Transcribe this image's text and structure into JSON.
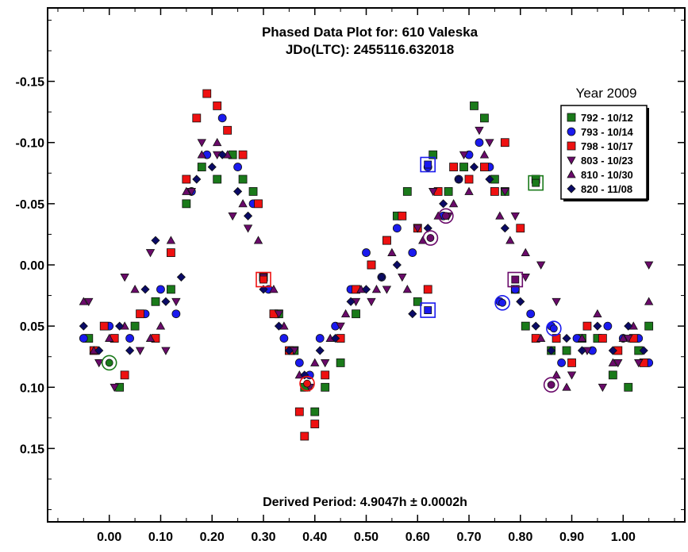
{
  "chart_data": {
    "type": "scatter",
    "title": "Phased Data Plot for: 610 Valeska",
    "subtitle": "JDo(LTC): 2455116.632018",
    "period_label": "Derived Period: 4.9047h ± 0.0002h",
    "xlabel": "",
    "ylabel": "",
    "xlim": [
      -0.12,
      1.12
    ],
    "ylim": [
      -0.21,
      0.21
    ],
    "y_inverted": true,
    "grid": false,
    "x_ticks": [
      0.0,
      0.1,
      0.2,
      0.3,
      0.4,
      0.5,
      0.6,
      0.7,
      0.8,
      0.9,
      1.0
    ],
    "x_tick_labels": [
      "0.00",
      "0.10",
      "0.20",
      "0.30",
      "0.40",
      "0.50",
      "0.60",
      "0.70",
      "0.80",
      "0.90",
      "1.00"
    ],
    "y_ticks": [
      -0.15,
      -0.1,
      -0.05,
      0.0,
      0.05,
      0.1,
      0.15
    ],
    "y_tick_labels": [
      "-0.15",
      "-0.10",
      "-0.05",
      "0.00",
      "0.05",
      "0.10",
      "0.15"
    ],
    "legend": {
      "title": "Year 2009",
      "position": "top-right"
    },
    "series": [
      {
        "name": "792 - 10/12",
        "marker": "square",
        "color": "#1a7a1a",
        "points": [
          [
            -0.04,
            0.06
          ],
          [
            0.02,
            0.1
          ],
          [
            0.05,
            0.05
          ],
          [
            0.09,
            0.03
          ],
          [
            0.12,
            0.02
          ],
          [
            0.15,
            -0.05
          ],
          [
            0.18,
            -0.08
          ],
          [
            0.21,
            -0.07
          ],
          [
            0.24,
            -0.09
          ],
          [
            0.26,
            -0.07
          ],
          [
            0.28,
            -0.06
          ],
          [
            0.3,
            0.01
          ],
          [
            0.33,
            0.04
          ],
          [
            0.36,
            0.07
          ],
          [
            0.38,
            0.1
          ],
          [
            0.4,
            0.12
          ],
          [
            0.42,
            0.1
          ],
          [
            0.45,
            0.08
          ],
          [
            0.48,
            0.04
          ],
          [
            0.51,
            0.0
          ],
          [
            0.54,
            -0.02
          ],
          [
            0.56,
            -0.04
          ],
          [
            0.58,
            -0.06
          ],
          [
            0.6,
            0.03
          ],
          [
            0.63,
            -0.09
          ],
          [
            0.66,
            -0.06
          ],
          [
            0.69,
            -0.08
          ],
          [
            0.71,
            -0.13
          ],
          [
            0.73,
            -0.12
          ],
          [
            0.75,
            -0.07
          ],
          [
            0.77,
            -0.06
          ],
          [
            0.79,
            0.02
          ],
          [
            0.81,
            0.05
          ],
          [
            0.83,
            -0.07
          ],
          [
            0.86,
            0.07
          ],
          [
            0.89,
            0.07
          ],
          [
            0.92,
            0.06
          ],
          [
            0.95,
            0.06
          ],
          [
            0.98,
            0.09
          ],
          [
            1.01,
            0.1
          ],
          [
            1.03,
            0.07
          ],
          [
            1.05,
            0.05
          ]
        ]
      },
      {
        "name": "793 - 10/14",
        "marker": "circle",
        "color": "#1a1aee",
        "points": [
          [
            -0.05,
            0.06
          ],
          [
            0.0,
            0.05
          ],
          [
            0.04,
            0.06
          ],
          [
            0.07,
            0.04
          ],
          [
            0.1,
            0.02
          ],
          [
            0.13,
            0.04
          ],
          [
            0.16,
            -0.06
          ],
          [
            0.19,
            -0.09
          ],
          [
            0.22,
            -0.12
          ],
          [
            0.25,
            -0.08
          ],
          [
            0.28,
            -0.05
          ],
          [
            0.31,
            0.02
          ],
          [
            0.34,
            0.06
          ],
          [
            0.37,
            0.08
          ],
          [
            0.39,
            0.09
          ],
          [
            0.41,
            0.06
          ],
          [
            0.44,
            0.05
          ],
          [
            0.47,
            0.02
          ],
          [
            0.5,
            -0.01
          ],
          [
            0.53,
            0.01
          ],
          [
            0.56,
            -0.03
          ],
          [
            0.59,
            -0.01
          ],
          [
            0.62,
            -0.08
          ],
          [
            0.65,
            -0.04
          ],
          [
            0.68,
            -0.07
          ],
          [
            0.7,
            -0.09
          ],
          [
            0.72,
            -0.1
          ],
          [
            0.74,
            -0.08
          ],
          [
            0.76,
            0.03
          ],
          [
            0.79,
            0.02
          ],
          [
            0.82,
            0.04
          ],
          [
            0.86,
            0.05
          ],
          [
            0.88,
            0.08
          ],
          [
            0.91,
            0.06
          ],
          [
            0.94,
            0.07
          ],
          [
            0.97,
            0.05
          ],
          [
            1.0,
            0.06
          ],
          [
            1.03,
            0.06
          ],
          [
            1.05,
            0.08
          ]
        ]
      },
      {
        "name": "798 - 10/17",
        "marker": "square",
        "color": "#ee1111",
        "points": [
          [
            -0.03,
            0.07
          ],
          [
            -0.01,
            0.05
          ],
          [
            0.01,
            0.06
          ],
          [
            0.03,
            0.09
          ],
          [
            0.06,
            0.04
          ],
          [
            0.09,
            0.06
          ],
          [
            0.12,
            -0.01
          ],
          [
            0.15,
            -0.07
          ],
          [
            0.17,
            -0.12
          ],
          [
            0.19,
            -0.14
          ],
          [
            0.21,
            -0.13
          ],
          [
            0.23,
            -0.11
          ],
          [
            0.26,
            -0.09
          ],
          [
            0.29,
            -0.05
          ],
          [
            0.3,
            0.01
          ],
          [
            0.32,
            0.04
          ],
          [
            0.35,
            0.07
          ],
          [
            0.37,
            0.12
          ],
          [
            0.38,
            0.14
          ],
          [
            0.4,
            0.13
          ],
          [
            0.42,
            0.09
          ],
          [
            0.45,
            0.06
          ],
          [
            0.48,
            0.02
          ],
          [
            0.51,
            0.0
          ],
          [
            0.54,
            -0.02
          ],
          [
            0.57,
            -0.04
          ],
          [
            0.6,
            -0.03
          ],
          [
            0.62,
            0.02
          ],
          [
            0.64,
            -0.06
          ],
          [
            0.67,
            -0.08
          ],
          [
            0.7,
            -0.07
          ],
          [
            0.73,
            -0.08
          ],
          [
            0.75,
            -0.06
          ],
          [
            0.77,
            -0.1
          ],
          [
            0.8,
            -0.03
          ],
          [
            0.83,
            0.06
          ],
          [
            0.87,
            0.06
          ],
          [
            0.9,
            0.08
          ],
          [
            0.93,
            0.05
          ],
          [
            0.96,
            0.06
          ],
          [
            0.99,
            0.07
          ],
          [
            1.02,
            0.06
          ],
          [
            1.04,
            0.08
          ]
        ]
      },
      {
        "name": "803 - 10/23",
        "marker": "triangle-down",
        "color": "#6a0a6a",
        "points": [
          [
            -0.04,
            0.03
          ],
          [
            -0.02,
            0.08
          ],
          [
            0.01,
            0.1
          ],
          [
            0.03,
            0.01
          ],
          [
            0.06,
            0.07
          ],
          [
            0.08,
            -0.01
          ],
          [
            0.11,
            0.07
          ],
          [
            0.13,
            0.03
          ],
          [
            0.16,
            -0.06
          ],
          [
            0.18,
            -0.1
          ],
          [
            0.21,
            -0.09
          ],
          [
            0.24,
            -0.04
          ],
          [
            0.27,
            -0.03
          ],
          [
            0.3,
            0.01
          ],
          [
            0.33,
            0.04
          ],
          [
            0.36,
            0.07
          ],
          [
            0.39,
            0.1
          ],
          [
            0.42,
            0.08
          ],
          [
            0.45,
            0.05
          ],
          [
            0.48,
            0.03
          ],
          [
            0.51,
            0.03
          ],
          [
            0.54,
            0.02
          ],
          [
            0.57,
            0.01
          ],
          [
            0.6,
            -0.03
          ],
          [
            0.63,
            -0.06
          ],
          [
            0.66,
            -0.04
          ],
          [
            0.69,
            -0.09
          ],
          [
            0.72,
            -0.11
          ],
          [
            0.74,
            -0.1
          ],
          [
            0.77,
            -0.06
          ],
          [
            0.79,
            -0.04
          ],
          [
            0.81,
            0.01
          ],
          [
            0.84,
            0.0
          ],
          [
            0.87,
            0.03
          ],
          [
            0.9,
            0.09
          ],
          [
            0.93,
            0.07
          ],
          [
            0.96,
            0.1
          ],
          [
            0.99,
            0.08
          ],
          [
            1.01,
            0.06
          ],
          [
            1.03,
            0.08
          ],
          [
            1.05,
            0.0
          ]
        ]
      },
      {
        "name": "810 - 10/30",
        "marker": "triangle-up",
        "color": "#6a0a6a",
        "points": [
          [
            -0.05,
            0.03
          ],
          [
            -0.03,
            0.07
          ],
          [
            0.0,
            0.06
          ],
          [
            0.03,
            0.05
          ],
          [
            0.05,
            0.02
          ],
          [
            0.08,
            0.06
          ],
          [
            0.1,
            0.05
          ],
          [
            0.12,
            -0.02
          ],
          [
            0.15,
            -0.06
          ],
          [
            0.18,
            -0.09
          ],
          [
            0.21,
            -0.1
          ],
          [
            0.23,
            -0.09
          ],
          [
            0.26,
            -0.05
          ],
          [
            0.29,
            -0.02
          ],
          [
            0.32,
            0.02
          ],
          [
            0.34,
            0.05
          ],
          [
            0.37,
            0.09
          ],
          [
            0.4,
            0.08
          ],
          [
            0.43,
            0.06
          ],
          [
            0.46,
            0.04
          ],
          [
            0.49,
            0.02
          ],
          [
            0.52,
            0.02
          ],
          [
            0.55,
            -0.01
          ],
          [
            0.58,
            0.02
          ],
          [
            0.61,
            -0.02
          ],
          [
            0.64,
            -0.04
          ],
          [
            0.67,
            -0.05
          ],
          [
            0.7,
            -0.06
          ],
          [
            0.73,
            -0.09
          ],
          [
            0.76,
            -0.04
          ],
          [
            0.78,
            -0.02
          ],
          [
            0.81,
            -0.01
          ],
          [
            0.84,
            0.06
          ],
          [
            0.87,
            0.09
          ],
          [
            0.89,
            0.1
          ],
          [
            0.92,
            0.06
          ],
          [
            0.95,
            0.04
          ],
          [
            0.98,
            0.08
          ],
          [
            1.0,
            0.06
          ],
          [
            1.02,
            0.05
          ],
          [
            1.05,
            0.03
          ]
        ]
      },
      {
        "name": "820 - 11/08",
        "marker": "diamond",
        "color": "#0a0a66",
        "points": [
          [
            -0.05,
            0.05
          ],
          [
            -0.02,
            0.07
          ],
          [
            0.02,
            0.05
          ],
          [
            0.04,
            0.07
          ],
          [
            0.07,
            0.02
          ],
          [
            0.09,
            -0.02
          ],
          [
            0.11,
            0.03
          ],
          [
            0.14,
            0.01
          ],
          [
            0.17,
            -0.07
          ],
          [
            0.2,
            -0.08
          ],
          [
            0.22,
            -0.09
          ],
          [
            0.25,
            -0.06
          ],
          [
            0.27,
            -0.04
          ],
          [
            0.3,
            0.02
          ],
          [
            0.33,
            0.05
          ],
          [
            0.35,
            0.07
          ],
          [
            0.38,
            0.09
          ],
          [
            0.41,
            0.07
          ],
          [
            0.44,
            0.06
          ],
          [
            0.47,
            0.03
          ],
          [
            0.5,
            0.02
          ],
          [
            0.53,
            0.01
          ],
          [
            0.56,
            0.0
          ],
          [
            0.59,
            0.04
          ],
          [
            0.62,
            -0.03
          ],
          [
            0.65,
            -0.05
          ],
          [
            0.68,
            -0.07
          ],
          [
            0.71,
            -0.08
          ],
          [
            0.74,
            -0.07
          ],
          [
            0.77,
            -0.03
          ],
          [
            0.8,
            0.03
          ],
          [
            0.83,
            0.05
          ],
          [
            0.86,
            0.07
          ],
          [
            0.89,
            0.06
          ],
          [
            0.92,
            0.07
          ],
          [
            0.95,
            0.05
          ],
          [
            0.98,
            0.07
          ],
          [
            1.01,
            0.05
          ],
          [
            1.04,
            0.07
          ]
        ]
      }
    ],
    "open_markers": [
      {
        "marker": "square",
        "color": "#1a7a1a",
        "x": 0.83,
        "y": -0.067
      },
      {
        "marker": "square",
        "color": "#1a1aee",
        "x": 0.62,
        "y": -0.082
      },
      {
        "marker": "square",
        "color": "#1a1aee",
        "x": 0.62,
        "y": 0.037
      },
      {
        "marker": "square",
        "color": "#ee1111",
        "x": 0.3,
        "y": 0.012
      },
      {
        "marker": "square",
        "color": "#6a0a6a",
        "x": 0.79,
        "y": 0.012
      },
      {
        "marker": "circle",
        "color": "#1a1aee",
        "x": 0.765,
        "y": 0.031
      },
      {
        "marker": "circle",
        "color": "#1a1aee",
        "x": 0.865,
        "y": 0.052
      },
      {
        "marker": "circle",
        "color": "#1a7a1a",
        "x": 0.0,
        "y": 0.08
      },
      {
        "marker": "circle",
        "color": "#ee1111",
        "x": 0.385,
        "y": 0.097
      },
      {
        "marker": "circle",
        "color": "#6a0a6a",
        "x": 0.655,
        "y": -0.04
      },
      {
        "marker": "circle",
        "color": "#6a0a6a",
        "x": 0.86,
        "y": 0.098
      },
      {
        "marker": "circle",
        "color": "#6a0a6a",
        "x": 0.625,
        "y": -0.022
      }
    ]
  }
}
